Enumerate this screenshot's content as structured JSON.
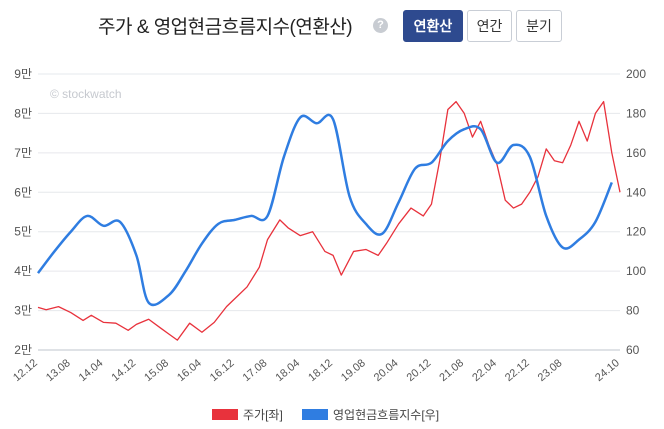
{
  "header": {
    "title": "주가 & 영업현금흐름지수(연환산)",
    "help_icon": "?",
    "tabs": [
      {
        "label": "연환산",
        "active": true
      },
      {
        "label": "연간",
        "active": false
      },
      {
        "label": "분기",
        "active": false
      }
    ]
  },
  "watermark": "© stockwatch",
  "colors": {
    "price": "#e8323c",
    "cashflow": "#2f7de1",
    "active_tab": "#2e4a8f"
  },
  "chart_data": {
    "type": "line",
    "x_ticks": [
      "12.12",
      "13.08",
      "14.04",
      "14.12",
      "15.08",
      "16.04",
      "16.12",
      "17.08",
      "18.04",
      "18.12",
      "19.08",
      "20.04",
      "20.12",
      "21.08",
      "22.04",
      "22.12",
      "23.08",
      "24.10"
    ],
    "left_axis": {
      "ticks": [
        "2만",
        "3만",
        "4만",
        "5만",
        "6만",
        "7만",
        "8만",
        "9만"
      ],
      "range": [
        20000,
        90000
      ]
    },
    "right_axis": {
      "ticks": [
        "60",
        "80",
        "100",
        "120",
        "140",
        "160",
        "180",
        "200"
      ],
      "range": [
        60,
        200
      ]
    },
    "series": [
      {
        "name": "주가[좌]",
        "axis": "left",
        "points": [
          [
            "12.12",
            30800
          ],
          [
            "13.02",
            30200
          ],
          [
            "13.05",
            31000
          ],
          [
            "13.08",
            29500
          ],
          [
            "13.11",
            27500
          ],
          [
            "14.01",
            28800
          ],
          [
            "14.04",
            27000
          ],
          [
            "14.07",
            26800
          ],
          [
            "14.10",
            25000
          ],
          [
            "14.12",
            26500
          ],
          [
            "15.03",
            27800
          ],
          [
            "15.06",
            25500
          ],
          [
            "15.08",
            24000
          ],
          [
            "15.10",
            22500
          ],
          [
            "16.01",
            26800
          ],
          [
            "16.04",
            24500
          ],
          [
            "16.07",
            27000
          ],
          [
            "16.10",
            31000
          ],
          [
            "16.12",
            33000
          ],
          [
            "17.03",
            36000
          ],
          [
            "17.06",
            41000
          ],
          [
            "17.08",
            48000
          ],
          [
            "17.11",
            53000
          ],
          [
            "18.01",
            51000
          ],
          [
            "18.04",
            49000
          ],
          [
            "18.07",
            50000
          ],
          [
            "18.10",
            45000
          ],
          [
            "18.12",
            44000
          ],
          [
            "19.02",
            39000
          ],
          [
            "19.05",
            45000
          ],
          [
            "19.08",
            45500
          ],
          [
            "19.11",
            44000
          ],
          [
            "20.01",
            47000
          ],
          [
            "20.04",
            52000
          ],
          [
            "20.07",
            56000
          ],
          [
            "20.10",
            54000
          ],
          [
            "20.12",
            57000
          ],
          [
            "21.02",
            68000
          ],
          [
            "21.04",
            81000
          ],
          [
            "21.06",
            83000
          ],
          [
            "21.08",
            80000
          ],
          [
            "21.10",
            74000
          ],
          [
            "21.12",
            78000
          ],
          [
            "22.02",
            72000
          ],
          [
            "22.04",
            67000
          ],
          [
            "22.06",
            58000
          ],
          [
            "22.08",
            56000
          ],
          [
            "22.10",
            57000
          ],
          [
            "22.12",
            60000
          ],
          [
            "23.02",
            64000
          ],
          [
            "23.04",
            71000
          ],
          [
            "23.06",
            68000
          ],
          [
            "23.08",
            67500
          ],
          [
            "23.10",
            72000
          ],
          [
            "23.12",
            78000
          ],
          [
            "24.02",
            73000
          ],
          [
            "24.04",
            80000
          ],
          [
            "24.06",
            83000
          ],
          [
            "24.08",
            70000
          ],
          [
            "24.10",
            60000
          ]
        ]
      },
      {
        "name": "영업현금흐름지수[우]",
        "axis": "right",
        "points": [
          [
            "12.12",
            99
          ],
          [
            "13.04",
            110
          ],
          [
            "13.08",
            120
          ],
          [
            "13.12",
            128
          ],
          [
            "14.04",
            123
          ],
          [
            "14.08",
            125
          ],
          [
            "14.12",
            108
          ],
          [
            "15.03",
            84
          ],
          [
            "15.08",
            88
          ],
          [
            "15.12",
            100
          ],
          [
            "16.04",
            114
          ],
          [
            "16.08",
            124
          ],
          [
            "16.12",
            126
          ],
          [
            "17.04",
            128
          ],
          [
            "17.08",
            128
          ],
          [
            "17.12",
            158
          ],
          [
            "18.04",
            178
          ],
          [
            "18.08",
            175
          ],
          [
            "18.12",
            177
          ],
          [
            "19.04",
            138
          ],
          [
            "19.08",
            124
          ],
          [
            "19.12",
            119
          ],
          [
            "20.04",
            135
          ],
          [
            "20.08",
            152
          ],
          [
            "20.12",
            155
          ],
          [
            "21.04",
            166
          ],
          [
            "21.08",
            172
          ],
          [
            "21.12",
            172
          ],
          [
            "22.04",
            155
          ],
          [
            "22.08",
            164
          ],
          [
            "22.12",
            158
          ],
          [
            "23.04",
            128
          ],
          [
            "23.08",
            112
          ],
          [
            "23.12",
            116
          ],
          [
            "24.04",
            125
          ],
          [
            "24.08",
            145
          ]
        ]
      }
    ],
    "legend": [
      "주가[좌]",
      "영업현금흐름지수[우]"
    ],
    "legend_position": "bottom",
    "grid": true
  }
}
